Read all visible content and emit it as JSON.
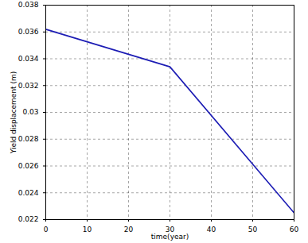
{
  "chart_data": {
    "type": "line",
    "x_label": "time(year)",
    "y_label": "Yield displacement (m)",
    "x": [
      0,
      30,
      60
    ],
    "series": [
      {
        "name": "Yield displacement",
        "color": "#1c1cb4",
        "values": [
          0.0362,
          0.0334,
          0.0225
        ]
      }
    ],
    "xlim": [
      0,
      60
    ],
    "xticks": [
      0,
      10,
      20,
      30,
      40,
      50,
      60
    ],
    "ylim": [
      0.022,
      0.038
    ],
    "yticks": [
      0.022,
      0.024,
      0.026,
      0.028,
      0.03,
      0.032,
      0.034,
      0.036,
      0.038
    ],
    "grid": true
  }
}
